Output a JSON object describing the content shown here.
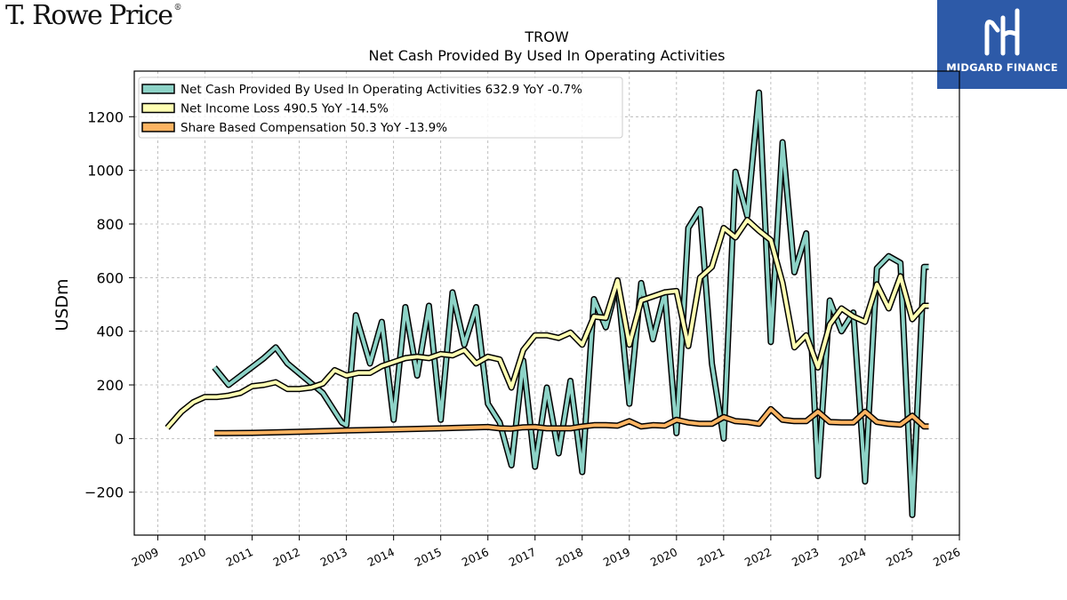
{
  "brand": {
    "logo_text": "T. Rowe Price",
    "watermark_text": "MIDGARD FINANCE"
  },
  "colors": {
    "net_cash": "#8dd3c7",
    "net_income": "#ffffb3",
    "share_comp": "#fdb462",
    "outline": "#000000",
    "grid": "#b0b0b0"
  },
  "chart_data": {
    "type": "line",
    "title": "TROW",
    "subtitle": "Net Cash Provided By Used In Operating Activities",
    "ylabel": "USDm",
    "xlabel": "",
    "xlim": [
      2008.5,
      2026
    ],
    "ylim": [
      -360,
      1370
    ],
    "yticks": [
      -200,
      0,
      200,
      400,
      600,
      800,
      1000,
      1200
    ],
    "ytick_labels": [
      "−200",
      "0",
      "200",
      "400",
      "600",
      "800",
      "1000",
      "1200"
    ],
    "xticks": [
      2009,
      2010,
      2011,
      2012,
      2013,
      2014,
      2015,
      2016,
      2017,
      2018,
      2019,
      2020,
      2021,
      2022,
      2023,
      2024,
      2025,
      2026
    ],
    "xtick_labels": [
      "2009",
      "2010",
      "2011",
      "2012",
      "2013",
      "2014",
      "2015",
      "2016",
      "2017",
      "2018",
      "2019",
      "2020",
      "2021",
      "2022",
      "2023",
      "2024",
      "2025",
      "2026"
    ],
    "grid": true,
    "legend_position": "top-left",
    "series": [
      {
        "name": "Net Cash Provided By Used In Operating Activities",
        "legend_label": "Net Cash Provided By Used In Operating Activities  632.9 YoY -0.7%",
        "color_key": "net_cash",
        "points": [
          [
            2010.2,
            265
          ],
          [
            2010.5,
            200
          ],
          [
            2011.25,
            300
          ],
          [
            2011.5,
            340
          ],
          [
            2011.75,
            280
          ],
          [
            2012.5,
            170
          ],
          [
            2012.9,
            60
          ],
          [
            2013.0,
            50
          ],
          [
            2013.2,
            460
          ],
          [
            2013.5,
            280
          ],
          [
            2013.75,
            435
          ],
          [
            2014.0,
            70
          ],
          [
            2014.25,
            490
          ],
          [
            2014.5,
            235
          ],
          [
            2014.75,
            495
          ],
          [
            2015.0,
            70
          ],
          [
            2015.25,
            545
          ],
          [
            2015.5,
            350
          ],
          [
            2015.75,
            490
          ],
          [
            2016.0,
            130
          ],
          [
            2016.25,
            60
          ],
          [
            2016.5,
            -100
          ],
          [
            2016.75,
            290
          ],
          [
            2017.0,
            -105
          ],
          [
            2017.25,
            190
          ],
          [
            2017.5,
            -55
          ],
          [
            2017.75,
            215
          ],
          [
            2018.0,
            -125
          ],
          [
            2018.25,
            520
          ],
          [
            2018.5,
            415
          ],
          [
            2018.75,
            580
          ],
          [
            2019.0,
            130
          ],
          [
            2019.25,
            580
          ],
          [
            2019.5,
            370
          ],
          [
            2019.75,
            545
          ],
          [
            2020.0,
            20
          ],
          [
            2020.25,
            785
          ],
          [
            2020.5,
            855
          ],
          [
            2020.75,
            280
          ],
          [
            2021.0,
            0
          ],
          [
            2021.25,
            995
          ],
          [
            2021.5,
            830
          ],
          [
            2021.75,
            1290
          ],
          [
            2022.0,
            360
          ],
          [
            2022.25,
            1105
          ],
          [
            2022.5,
            620
          ],
          [
            2022.75,
            765
          ],
          [
            2023.0,
            -140
          ],
          [
            2023.25,
            515
          ],
          [
            2023.5,
            400
          ],
          [
            2023.75,
            470
          ],
          [
            2024.0,
            -160
          ],
          [
            2024.25,
            635
          ],
          [
            2024.5,
            680
          ],
          [
            2024.75,
            655
          ],
          [
            2025.0,
            -285
          ],
          [
            2025.25,
            640
          ],
          [
            2025.35,
            640
          ]
        ]
      },
      {
        "name": "Net Income Loss",
        "legend_label": "Net Income Loss  490.5 YoY -14.5%",
        "color_key": "net_income",
        "points": [
          [
            2009.2,
            40
          ],
          [
            2009.5,
            100
          ],
          [
            2009.75,
            135
          ],
          [
            2010.0,
            155
          ],
          [
            2010.25,
            155
          ],
          [
            2010.5,
            160
          ],
          [
            2010.75,
            170
          ],
          [
            2011.0,
            195
          ],
          [
            2011.25,
            200
          ],
          [
            2011.5,
            210
          ],
          [
            2011.75,
            185
          ],
          [
            2012.0,
            185
          ],
          [
            2012.25,
            190
          ],
          [
            2012.5,
            205
          ],
          [
            2012.75,
            255
          ],
          [
            2013.0,
            235
          ],
          [
            2013.25,
            245
          ],
          [
            2013.5,
            245
          ],
          [
            2013.75,
            270
          ],
          [
            2014.0,
            285
          ],
          [
            2014.25,
            300
          ],
          [
            2014.5,
            305
          ],
          [
            2014.75,
            300
          ],
          [
            2015.0,
            315
          ],
          [
            2015.25,
            310
          ],
          [
            2015.5,
            330
          ],
          [
            2015.75,
            280
          ],
          [
            2016.0,
            305
          ],
          [
            2016.25,
            295
          ],
          [
            2016.5,
            190
          ],
          [
            2016.75,
            330
          ],
          [
            2017.0,
            385
          ],
          [
            2017.25,
            385
          ],
          [
            2017.5,
            375
          ],
          [
            2017.75,
            395
          ],
          [
            2018.0,
            350
          ],
          [
            2018.25,
            455
          ],
          [
            2018.5,
            450
          ],
          [
            2018.75,
            590
          ],
          [
            2019.0,
            350
          ],
          [
            2019.25,
            515
          ],
          [
            2019.5,
            530
          ],
          [
            2019.75,
            545
          ],
          [
            2020.0,
            550
          ],
          [
            2020.25,
            345
          ],
          [
            2020.5,
            600
          ],
          [
            2020.75,
            640
          ],
          [
            2021.0,
            785
          ],
          [
            2021.25,
            750
          ],
          [
            2021.5,
            815
          ],
          [
            2021.75,
            775
          ],
          [
            2022.0,
            740
          ],
          [
            2022.25,
            580
          ],
          [
            2022.5,
            340
          ],
          [
            2022.75,
            385
          ],
          [
            2023.0,
            265
          ],
          [
            2023.25,
            425
          ],
          [
            2023.5,
            485
          ],
          [
            2023.75,
            455
          ],
          [
            2024.0,
            435
          ],
          [
            2024.25,
            575
          ],
          [
            2024.5,
            485
          ],
          [
            2024.75,
            605
          ],
          [
            2025.0,
            445
          ],
          [
            2025.25,
            495
          ],
          [
            2025.35,
            495
          ]
        ]
      },
      {
        "name": "Share Based Compensation",
        "legend_label": "Share Based Compensation  50.3 YoY -13.9%",
        "color_key": "share_comp",
        "points": [
          [
            2010.2,
            20
          ],
          [
            2011.0,
            21
          ],
          [
            2012.0,
            25
          ],
          [
            2013.0,
            30
          ],
          [
            2014.0,
            34
          ],
          [
            2015.0,
            38
          ],
          [
            2016.0,
            43
          ],
          [
            2016.25,
            38
          ],
          [
            2016.5,
            37
          ],
          [
            2016.75,
            42
          ],
          [
            2017.0,
            43
          ],
          [
            2017.25,
            38
          ],
          [
            2017.5,
            38
          ],
          [
            2017.75,
            38
          ],
          [
            2018.0,
            45
          ],
          [
            2018.25,
            50
          ],
          [
            2018.5,
            50
          ],
          [
            2018.75,
            48
          ],
          [
            2019.0,
            65
          ],
          [
            2019.25,
            45
          ],
          [
            2019.5,
            50
          ],
          [
            2019.75,
            48
          ],
          [
            2020.0,
            70
          ],
          [
            2020.25,
            60
          ],
          [
            2020.5,
            55
          ],
          [
            2020.75,
            55
          ],
          [
            2021.0,
            80
          ],
          [
            2021.25,
            65
          ],
          [
            2021.5,
            62
          ],
          [
            2021.75,
            55
          ],
          [
            2022.0,
            110
          ],
          [
            2022.25,
            70
          ],
          [
            2022.5,
            65
          ],
          [
            2022.75,
            65
          ],
          [
            2023.0,
            100
          ],
          [
            2023.25,
            62
          ],
          [
            2023.5,
            60
          ],
          [
            2023.75,
            60
          ],
          [
            2024.0,
            100
          ],
          [
            2024.25,
            62
          ],
          [
            2024.5,
            55
          ],
          [
            2024.75,
            52
          ],
          [
            2025.0,
            85
          ],
          [
            2025.25,
            45
          ],
          [
            2025.35,
            45
          ]
        ]
      }
    ]
  }
}
